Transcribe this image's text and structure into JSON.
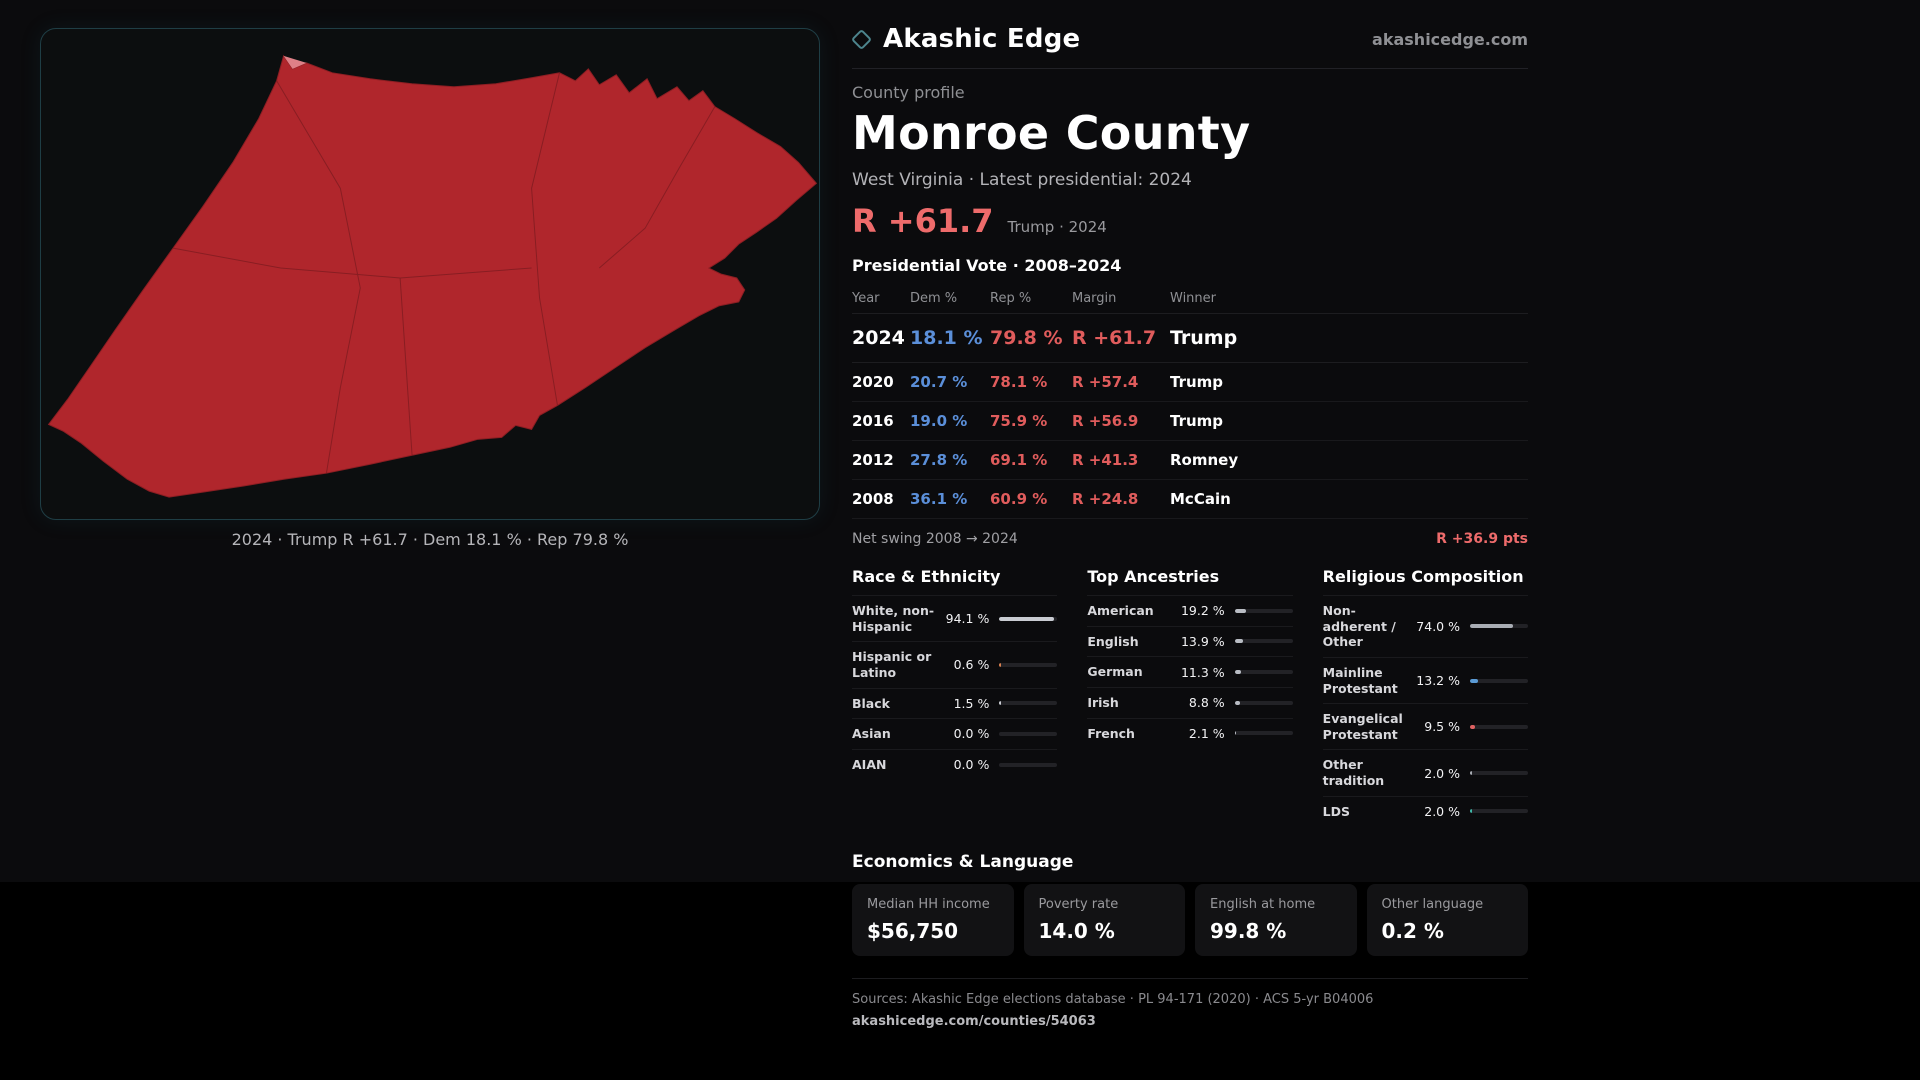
{
  "brand": {
    "name": "Akashic Edge",
    "site": "akashicedge.com"
  },
  "map_panel": {
    "caption": "2024 · Trump R +61.7 · Dem 18.1 % · Rep 79.8 %",
    "county_fill": "#b0262c",
    "county_stroke": "#8c1e23"
  },
  "profile": {
    "kicker": "County profile",
    "county_name": "Monroe County",
    "subtitle": "West Virginia · Latest presidential: 2024",
    "headline_margin": "R +61.7",
    "headline_context": "Trump · 2024"
  },
  "vote_table": {
    "title": "Presidential Vote · 2008–2024",
    "headers": {
      "year": "Year",
      "dem": "Dem %",
      "rep": "Rep %",
      "margin": "Margin",
      "winner": "Winner"
    },
    "rows": [
      {
        "year": "2024",
        "dem": "18.1 %",
        "rep": "79.8 %",
        "margin": "R +61.7",
        "winner": "Trump"
      },
      {
        "year": "2020",
        "dem": "20.7 %",
        "rep": "78.1 %",
        "margin": "R +57.4",
        "winner": "Trump"
      },
      {
        "year": "2016",
        "dem": "19.0 %",
        "rep": "75.9 %",
        "margin": "R +56.9",
        "winner": "Trump"
      },
      {
        "year": "2012",
        "dem": "27.8 %",
        "rep": "69.1 %",
        "margin": "R +41.3",
        "winner": "Romney"
      },
      {
        "year": "2008",
        "dem": "36.1 %",
        "rep": "60.9 %",
        "margin": "R +24.8",
        "winner": "McCain"
      }
    ],
    "net_swing_label": "Net swing 2008 → 2024",
    "net_swing_value": "R +36.9 pts"
  },
  "race": {
    "title": "Race & Ethnicity",
    "rows": [
      {
        "label": "White, non-Hispanic",
        "value": "94.1 %",
        "pct": 94.1,
        "color": "#c9ccd2"
      },
      {
        "label": "Hispanic or Latino",
        "value": "0.6 %",
        "pct": 0.6,
        "color": "#d9804f"
      },
      {
        "label": "Black",
        "value": "1.5 %",
        "pct": 1.5,
        "color": "#c9ccd2"
      },
      {
        "label": "Asian",
        "value": "0.0 %",
        "pct": 0,
        "color": "#c9ccd2"
      },
      {
        "label": "AIAN",
        "value": "0.0 %",
        "pct": 0,
        "color": "#c9ccd2"
      }
    ]
  },
  "ancestries": {
    "title": "Top Ancestries",
    "rows": [
      {
        "label": "American",
        "value": "19.2 %",
        "pct": 19.2,
        "color": "#b9bdc4"
      },
      {
        "label": "English",
        "value": "13.9 %",
        "pct": 13.9,
        "color": "#b9bdc4"
      },
      {
        "label": "German",
        "value": "11.3 %",
        "pct": 11.3,
        "color": "#b9bdc4"
      },
      {
        "label": "Irish",
        "value": "8.8 %",
        "pct": 8.8,
        "color": "#b9bdc4"
      },
      {
        "label": "French",
        "value": "2.1 %",
        "pct": 2.1,
        "color": "#b9bdc4"
      }
    ]
  },
  "religion": {
    "title": "Religious Composition",
    "rows": [
      {
        "label": "Non-adherent / Other",
        "value": "74.0 %",
        "pct": 74.0,
        "color": "#a9adb4"
      },
      {
        "label": "Mainline Protestant",
        "value": "13.2 %",
        "pct": 13.2,
        "color": "#5b9bd5"
      },
      {
        "label": "Evangelical Protestant",
        "value": "9.5 %",
        "pct": 9.5,
        "color": "#e06262"
      },
      {
        "label": "Other tradition",
        "value": "2.0 %",
        "pct": 2.0,
        "color": "#a9adb4"
      },
      {
        "label": "LDS",
        "value": "2.0 %",
        "pct": 2.0,
        "color": "#3fb8a8"
      }
    ]
  },
  "economics": {
    "title": "Economics & Language",
    "stats": [
      {
        "label": "Median HH income",
        "value": "$56,750"
      },
      {
        "label": "Poverty rate",
        "value": "14.0 %"
      },
      {
        "label": "English at home",
        "value": "99.8 %"
      },
      {
        "label": "Other language",
        "value": "0.2 %"
      }
    ]
  },
  "footer": {
    "sources": "Sources: Akashic Edge elections database · PL 94-171 (2020) · ACS 5-yr B04006",
    "permalink": "akashicedge.com/counties/54063"
  },
  "colors": {
    "dem_blue": "#5b8fd9",
    "rep_red": "#e05c5c",
    "accent_red": "#ee6b6b",
    "panel_teal": "#1f3e45"
  }
}
